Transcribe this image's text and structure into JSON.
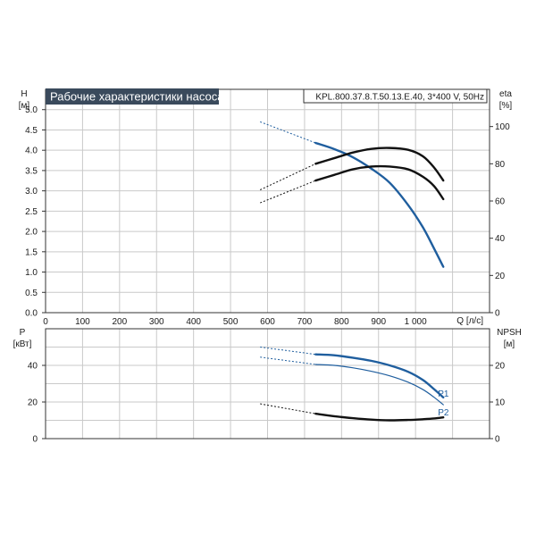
{
  "chart_data": [
    {
      "type": "line",
      "title": "Рабочие характеристики насоса",
      "subtitle": "KPL.800.37.8.T.50.13.E.40, 3*400 V, 50Hz",
      "xlabel": "Q [л/с]",
      "xlim": [
        0,
        1200
      ],
      "x_ticks": [
        "0",
        "100",
        "200",
        "300",
        "400",
        "500",
        "600",
        "700",
        "800",
        "900",
        "1 000"
      ],
      "ylabel_left": "H",
      "ylabel_left_unit": "[м]",
      "ylim_left": [
        0,
        5.5
      ],
      "y_ticks_left": [
        "0.0",
        "0.5",
        "1.0",
        "1.5",
        "2.0",
        "2.5",
        "3.0",
        "3.5",
        "4.0",
        "4.5",
        "5.0"
      ],
      "ylabel_right": "eta",
      "ylabel_right_unit": "[%]",
      "ylim_right": [
        0,
        120
      ],
      "y_ticks_right": [
        "0",
        "20",
        "40",
        "60",
        "80",
        "100"
      ],
      "grid": true,
      "series": [
        {
          "axis": "left",
          "color": "#1f5e9e",
          "dashed_x": [
            580,
            730
          ],
          "x": [
            730,
            780,
            830,
            880,
            930,
            980,
            1020,
            1050,
            1075
          ],
          "values": [
            4.18,
            4.03,
            3.83,
            3.55,
            3.2,
            2.65,
            2.1,
            1.58,
            1.13
          ]
        },
        {
          "axis": "right",
          "color": "#111111",
          "dashed_x": [
            580,
            730
          ],
          "dashed_start_value": 66,
          "x": [
            730,
            780,
            830,
            880,
            930,
            980,
            1020,
            1050,
            1075
          ],
          "values": [
            80,
            83,
            86,
            88,
            88.5,
            87.5,
            84,
            78,
            71
          ]
        },
        {
          "axis": "right",
          "color": "#111111",
          "dashed_x": [
            580,
            730
          ],
          "dashed_start_value": 59,
          "x": [
            730,
            780,
            830,
            880,
            930,
            980,
            1020,
            1050,
            1075
          ],
          "values": [
            71,
            74,
            77,
            78.5,
            78.5,
            77,
            73,
            68,
            61
          ]
        }
      ]
    },
    {
      "type": "line",
      "xlim": [
        0,
        1200
      ],
      "ylabel_left": "P",
      "ylabel_left_unit": "[кВт]",
      "ylim_left": [
        0,
        60
      ],
      "y_ticks_left": [
        "0",
        "20",
        "40"
      ],
      "ylabel_right": "NPSH",
      "ylabel_right_unit": "[м]",
      "ylim_right": [
        0,
        30
      ],
      "y_ticks_right": [
        "0",
        "10",
        "20"
      ],
      "grid": true,
      "series": [
        {
          "name": "P1",
          "axis": "left",
          "color": "#1f5e9e",
          "dashed_x": [
            580,
            730
          ],
          "dashed_start_value": 50,
          "x": [
            730,
            780,
            830,
            880,
            930,
            980,
            1020,
            1050,
            1075
          ],
          "values": [
            46,
            45.5,
            44.2,
            42.5,
            40,
            36.5,
            32,
            27,
            22.5
          ]
        },
        {
          "name": "P2",
          "axis": "left",
          "color": "#1f5e9e",
          "dashed_x": [
            580,
            730
          ],
          "dashed_start_value": 44.5,
          "x": [
            730,
            780,
            830,
            880,
            930,
            980,
            1020,
            1050,
            1075
          ],
          "values": [
            40.5,
            40,
            38.7,
            36.8,
            34.3,
            30.8,
            26.8,
            22.6,
            18.5
          ]
        },
        {
          "axis": "right",
          "color": "#111111",
          "dashed_x": [
            580,
            730
          ],
          "dashed_start_value": 9.5,
          "x": [
            730,
            780,
            830,
            880,
            930,
            980,
            1020,
            1050,
            1075
          ],
          "values": [
            6.8,
            6.1,
            5.6,
            5.2,
            5.0,
            5.1,
            5.3,
            5.5,
            5.8
          ]
        }
      ]
    }
  ]
}
